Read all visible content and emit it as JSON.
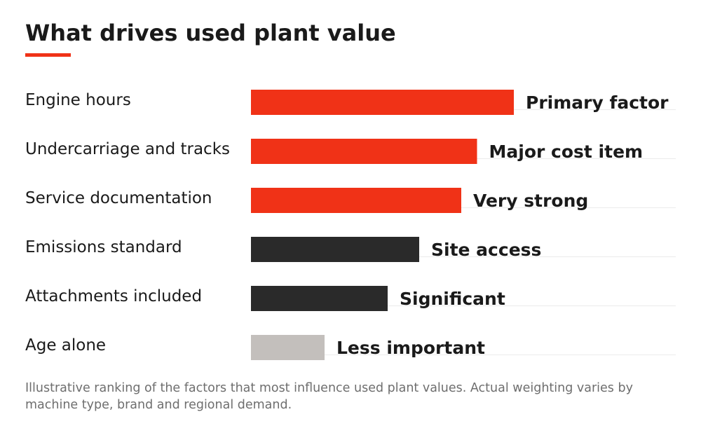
{
  "chart_data": {
    "type": "bar",
    "orientation": "horizontal",
    "title": "What drives used plant value",
    "categories": [
      "Engine hours",
      "Undercarriage and tracks",
      "Service documentation",
      "Emissions standard",
      "Attachments included",
      "Age alone"
    ],
    "values": [
      100,
      86,
      80,
      64,
      52,
      28
    ],
    "value_labels": [
      "Primary factor",
      "Major cost item",
      "Very strong",
      "Site access",
      "Significant",
      "Less important"
    ],
    "bar_colors": [
      "#f03217",
      "#f03217",
      "#f03217",
      "#2a2a2a",
      "#2a2a2a",
      "#c3bfbc"
    ],
    "xlim": [
      0,
      100
    ],
    "xlabel": "",
    "ylabel": "",
    "grid": false,
    "legend": "none"
  },
  "footnote": "Illustrative ranking of the factors that most influence used plant values. Actual weighting varies by machine type, brand and regional demand."
}
